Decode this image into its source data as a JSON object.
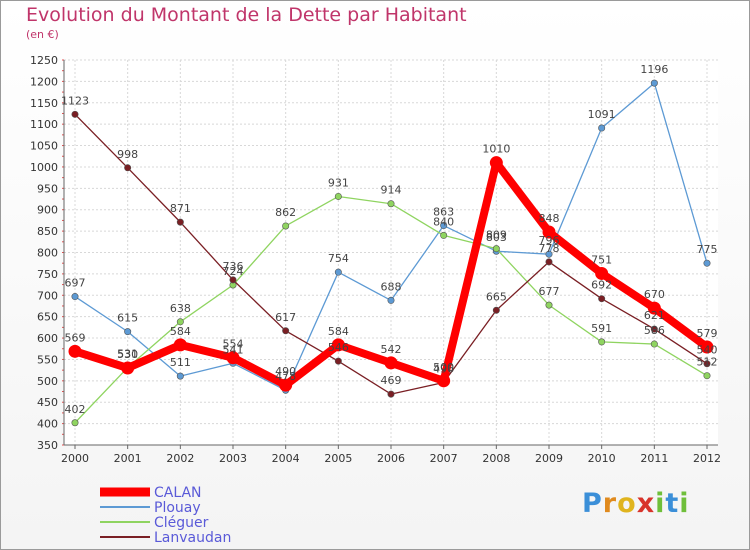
{
  "chart_data": {
    "type": "line",
    "title": "Evolution du Montant de la Dette par Habitant",
    "subtitle": "(en €)",
    "x": [
      "2000",
      "2001",
      "2002",
      "2003",
      "2004",
      "2005",
      "2006",
      "2007",
      "2008",
      "2009",
      "2010",
      "2011",
      "2012"
    ],
    "ylim": [
      350,
      1250
    ],
    "yticks": [
      350,
      400,
      450,
      500,
      550,
      600,
      650,
      700,
      750,
      800,
      850,
      900,
      950,
      1000,
      1050,
      1100,
      1150,
      1200,
      1250
    ],
    "grid": true,
    "legend_position": "bottom-left",
    "series": [
      {
        "name": "CALAN",
        "color": "#ff0000",
        "values": [
          569,
          530,
          584,
          554,
          490,
          584,
          542,
          500,
          1010,
          848,
          751,
          670,
          579
        ]
      },
      {
        "name": "Plouay",
        "color": "#5d9ad4",
        "values": [
          697,
          615,
          511,
          541,
          478,
          754,
          688,
          863,
          803,
          796,
          1091,
          1196,
          775
        ]
      },
      {
        "name": "Cléguer",
        "color": "#8fd460",
        "values": [
          402,
          531,
          638,
          724,
          862,
          931,
          914,
          840,
          809,
          677,
          591,
          586,
          512
        ]
      },
      {
        "name": "Lanvaudan",
        "color": "#7a1f24",
        "values": [
          1123,
          998,
          871,
          736,
          617,
          546,
          469,
          496,
          665,
          778,
          692,
          621,
          540
        ]
      }
    ]
  },
  "brand": {
    "letters": [
      "P",
      "r",
      "o",
      "x",
      "i",
      "t",
      "i"
    ],
    "colors": [
      "#3b8fd8",
      "#e08a1e",
      "#e0b41e",
      "#d8342b",
      "#6fbf3a",
      "#3b8fd8",
      "#6fbf3a"
    ]
  }
}
